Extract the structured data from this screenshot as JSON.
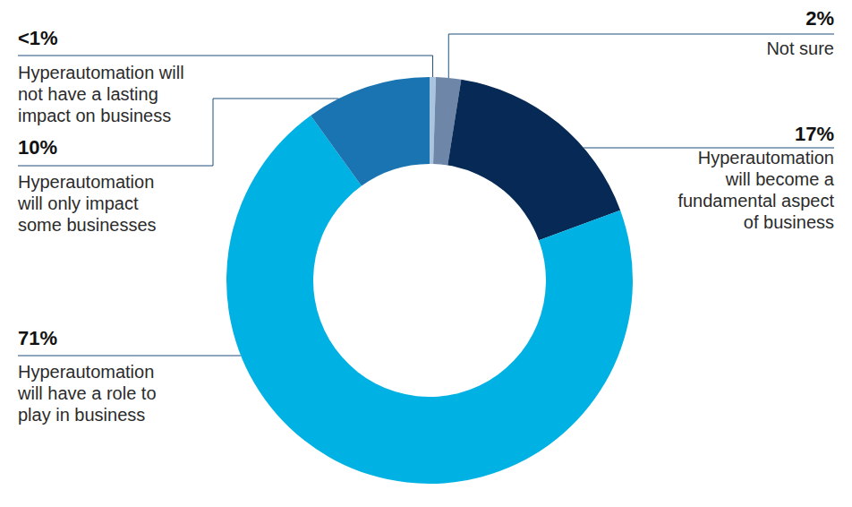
{
  "chart_data": {
    "type": "pie",
    "categories": [
      "Hyperautomation will not have a lasting impact on business",
      "Not sure",
      "Hyperautomation will become a fundamental aspect of business",
      "Hyperautomation will have a role to play in business",
      "Hyperautomation will only impact some businesses"
    ],
    "values": [
      0.5,
      2,
      17,
      71,
      10
    ],
    "value_labels": [
      "<1%",
      "2%",
      "17%",
      "71%",
      "10%"
    ],
    "colors": [
      "#a9c4de",
      "#6e86a8",
      "#062a55",
      "#00b2e3",
      "#1a74b1"
    ],
    "data_labels": true
  }
}
